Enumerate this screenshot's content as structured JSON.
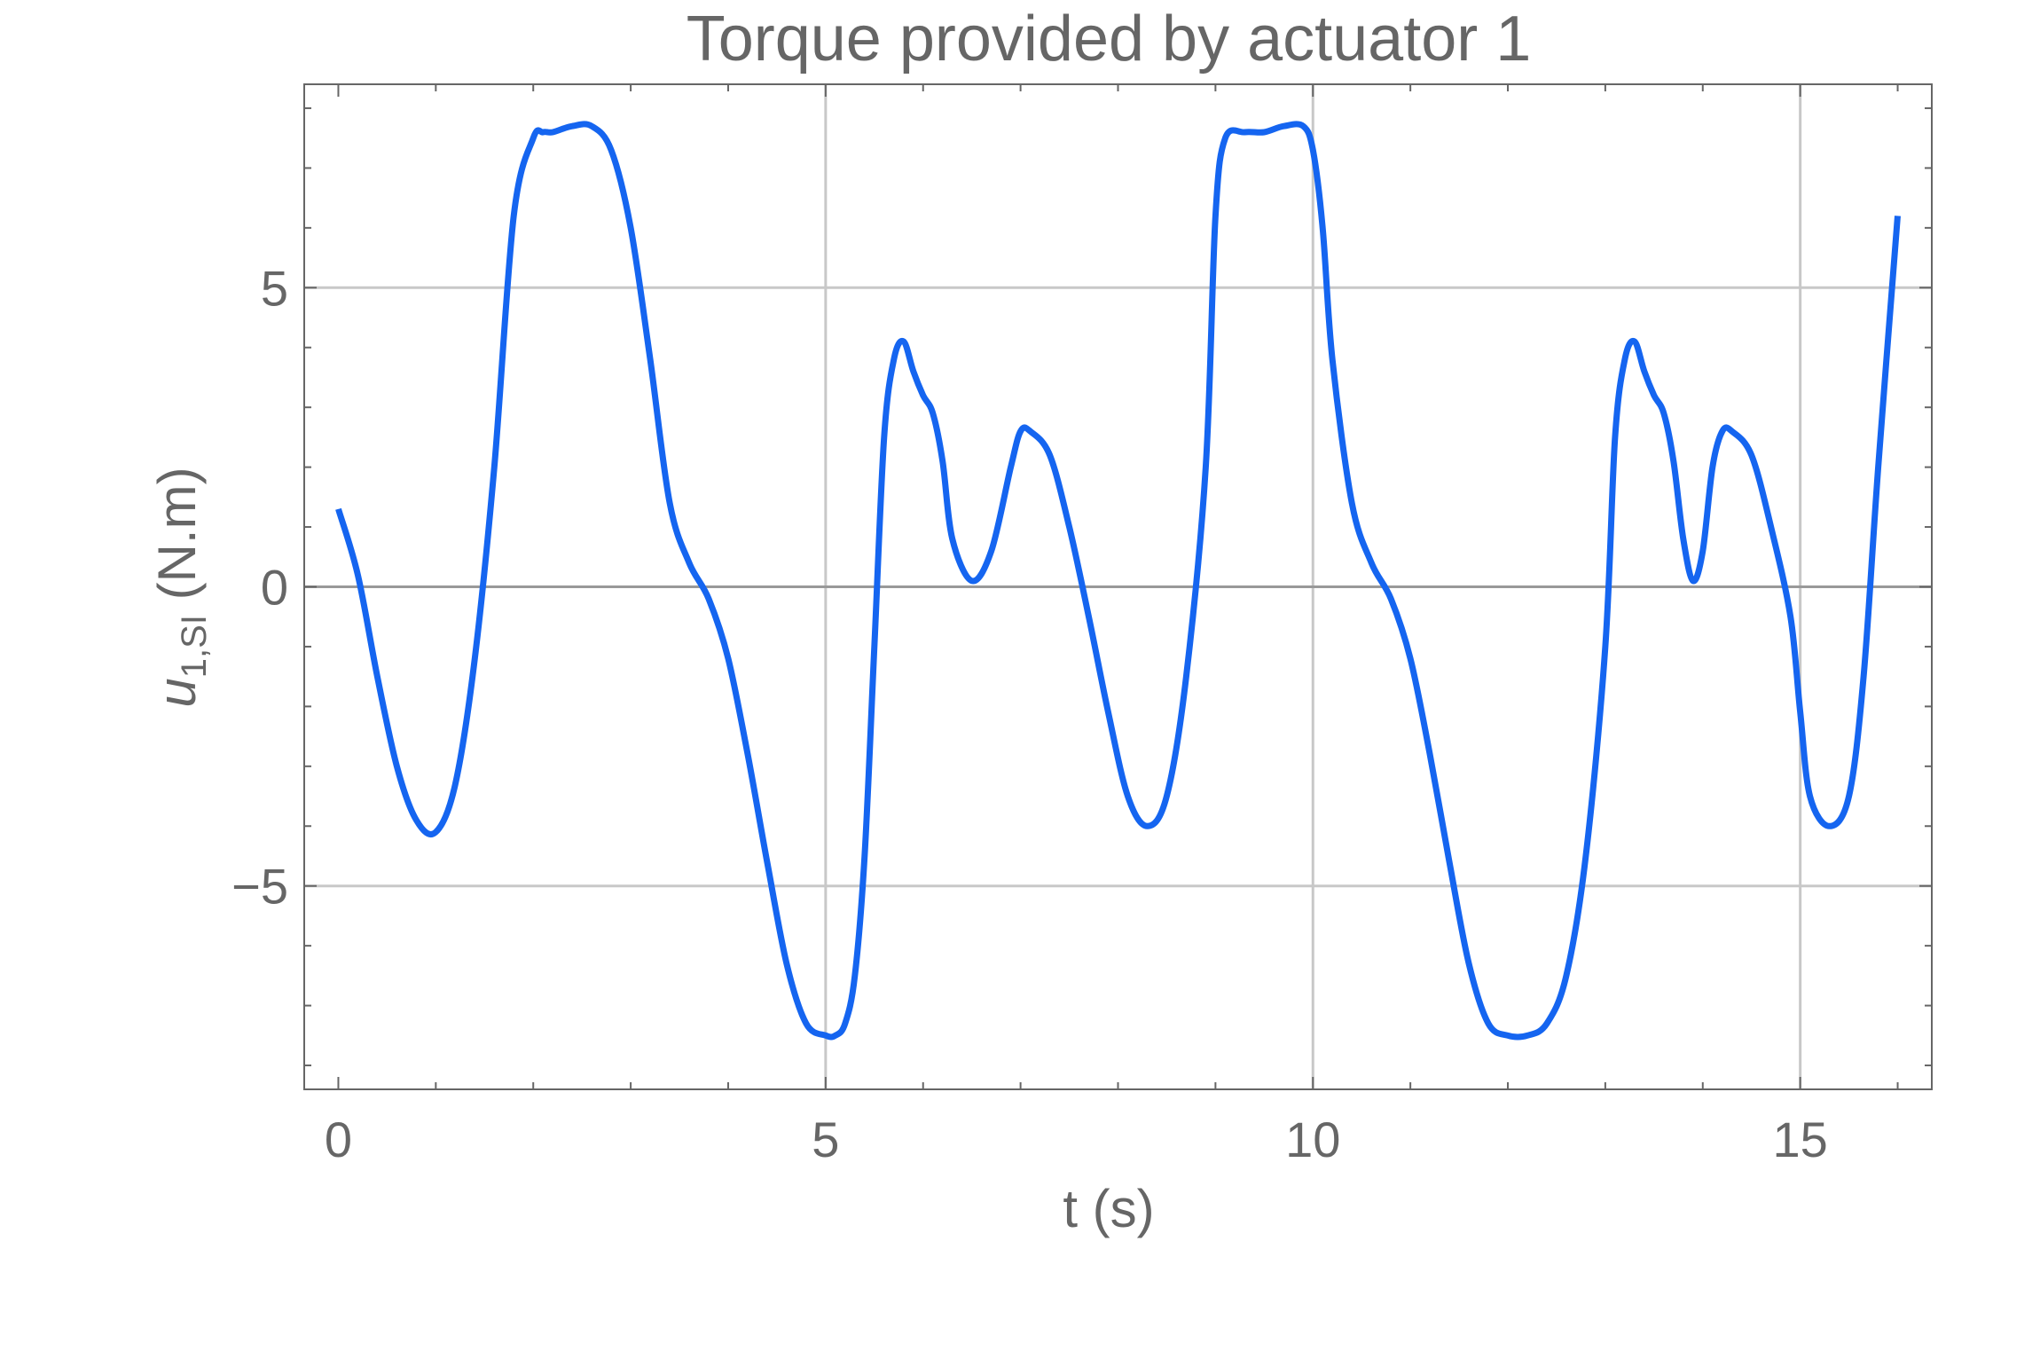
{
  "colors": {
    "series": "#1565f0",
    "grid": "#c8c8c8",
    "zero_line": "#999999",
    "frame": "#666666",
    "text": "#666666"
  },
  "chart_data": {
    "type": "line",
    "title": "Torque provided by actuator 1",
    "xlabel": "t (s)",
    "ylabel": {
      "base": "u",
      "subscript": "1,SI",
      "unit": " (N.m)"
    },
    "xlim": [
      -0.35,
      16.35
    ],
    "ylim": [
      -8.4,
      8.4
    ],
    "x_ticks": [
      0,
      5,
      10,
      15
    ],
    "x_tick_labels": [
      "0",
      "5",
      "10",
      "15"
    ],
    "y_ticks": [
      -5,
      0,
      5
    ],
    "y_tick_labels": [
      "−5",
      "0",
      "5"
    ],
    "x_minor_ticks": [
      1,
      2,
      3,
      4,
      6,
      7,
      8,
      9,
      11,
      12,
      13,
      14,
      16
    ],
    "y_minor_ticks": [
      -8,
      -7,
      -6,
      -4,
      -3,
      -2,
      -1,
      1,
      2,
      3,
      4,
      6,
      7,
      8
    ],
    "grid": true,
    "series": [
      {
        "x": [
          0,
          0.2,
          0.4,
          0.6,
          0.8,
          1.0,
          1.2,
          1.4,
          1.6,
          1.8,
          2.0,
          2.1,
          2.2,
          2.4,
          2.6,
          2.8,
          3.0,
          3.2,
          3.4,
          3.6,
          3.8,
          4.0,
          4.2,
          4.4,
          4.6,
          4.8,
          5.0,
          5.1,
          5.2,
          5.3,
          5.4,
          5.5,
          5.6,
          5.7,
          5.8,
          5.9,
          6.0,
          6.1,
          6.2,
          6.3,
          6.5,
          6.7,
          6.9,
          7.0,
          7.1,
          7.3,
          7.5,
          7.7,
          7.9,
          8.1,
          8.3,
          8.5,
          8.7,
          8.9,
          9.0,
          9.1,
          9.3,
          9.5,
          9.7,
          9.9,
          10.0,
          10.1,
          10.2,
          10.4,
          10.6,
          10.8,
          11.0,
          11.2,
          11.4,
          11.6,
          11.8,
          12.0,
          12.2,
          12.4,
          12.6,
          12.8,
          13.0,
          13.1,
          13.2,
          13.3,
          13.4,
          13.5,
          13.6,
          13.7,
          13.8,
          13.9,
          14.0,
          14.1,
          14.2,
          14.3,
          14.5,
          14.7,
          14.9,
          15.0,
          15.1,
          15.3,
          15.5,
          15.65,
          15.8,
          16.0
        ],
        "y": [
          1.3,
          0.2,
          -1.5,
          -3.0,
          -3.9,
          -4.1,
          -3.3,
          -1.2,
          2.0,
          6.2,
          7.5,
          7.6,
          7.6,
          7.7,
          7.7,
          7.3,
          6.0,
          3.8,
          1.4,
          0.4,
          -0.2,
          -1.2,
          -2.8,
          -4.6,
          -6.3,
          -7.3,
          -7.5,
          -7.5,
          -7.3,
          -6.5,
          -4.5,
          -1.0,
          2.5,
          3.8,
          4.1,
          3.6,
          3.2,
          2.9,
          2.1,
          0.8,
          0.1,
          0.6,
          2.0,
          2.6,
          2.6,
          2.2,
          1.0,
          -0.5,
          -2.1,
          -3.5,
          -4.0,
          -3.5,
          -1.5,
          2.0,
          6.2,
          7.5,
          7.6,
          7.6,
          7.7,
          7.7,
          7.3,
          6.0,
          3.8,
          1.4,
          0.4,
          -0.2,
          -1.2,
          -2.8,
          -4.6,
          -6.3,
          -7.3,
          -7.5,
          -7.5,
          -7.3,
          -6.5,
          -4.5,
          -1.0,
          2.5,
          3.8,
          4.1,
          3.6,
          3.2,
          2.9,
          2.1,
          0.8,
          0.1,
          0.6,
          2.0,
          2.6,
          2.6,
          2.2,
          1.0,
          -0.5,
          -2.1,
          -3.5,
          -4.0,
          -3.5,
          -1.5,
          2.0,
          6.2
        ],
        "note": ""
      }
    ]
  }
}
